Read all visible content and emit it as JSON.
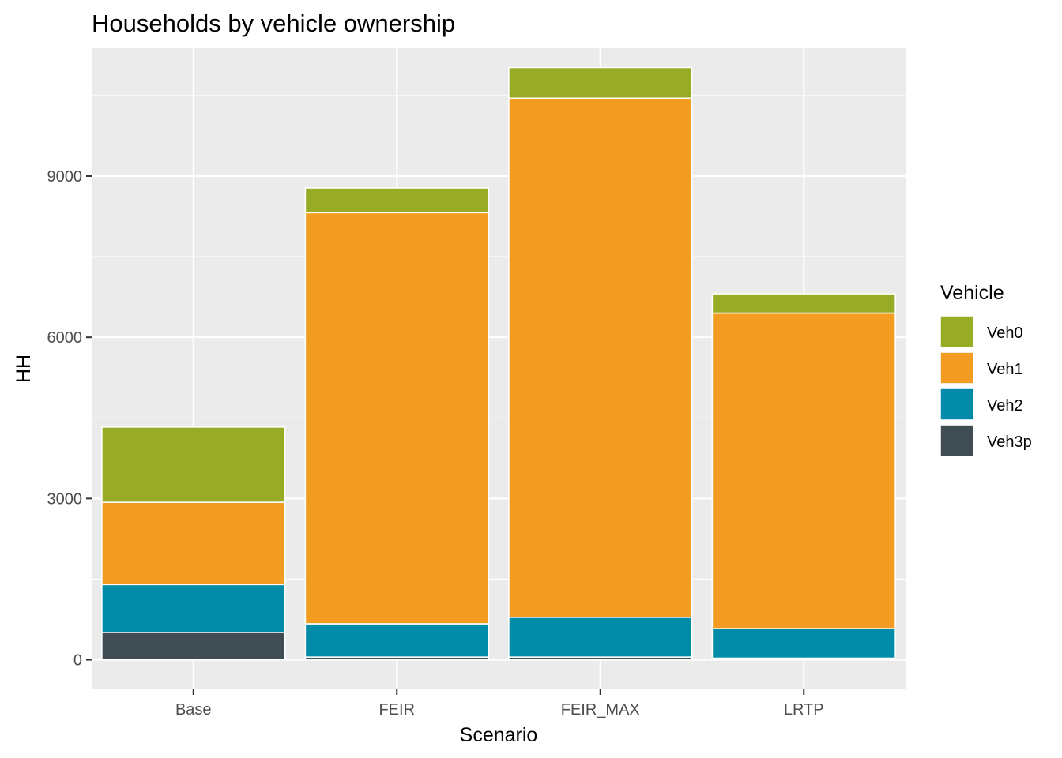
{
  "chart_data": {
    "type": "bar",
    "stacked": true,
    "title": "Households by vehicle ownership",
    "xlabel": "Scenario",
    "ylabel": "HH",
    "categories": [
      "Base",
      "FEIR",
      "FEIR_MAX",
      "LRTP"
    ],
    "ylim": [
      -550,
      11380
    ],
    "yticks": [
      0,
      3000,
      6000,
      9000
    ],
    "grid": true,
    "legend_title": "Vehicle",
    "legend_position": "right",
    "panel_background": "#ebebeb",
    "series": [
      {
        "name": "Veh3p",
        "color": "#3f4c54",
        "values": [
          510,
          50,
          50,
          30
        ]
      },
      {
        "name": "Veh2",
        "color": "#008ca8",
        "values": [
          890,
          620,
          740,
          550
        ]
      },
      {
        "name": "Veh1",
        "color": "#f29d22",
        "values": [
          1530,
          7650,
          9660,
          5870
        ]
      },
      {
        "name": "Veh0",
        "color": "#98ab25",
        "values": [
          1400,
          460,
          570,
          360
        ]
      }
    ],
    "legend_order": [
      "Veh0",
      "Veh1",
      "Veh2",
      "Veh3p"
    ]
  }
}
